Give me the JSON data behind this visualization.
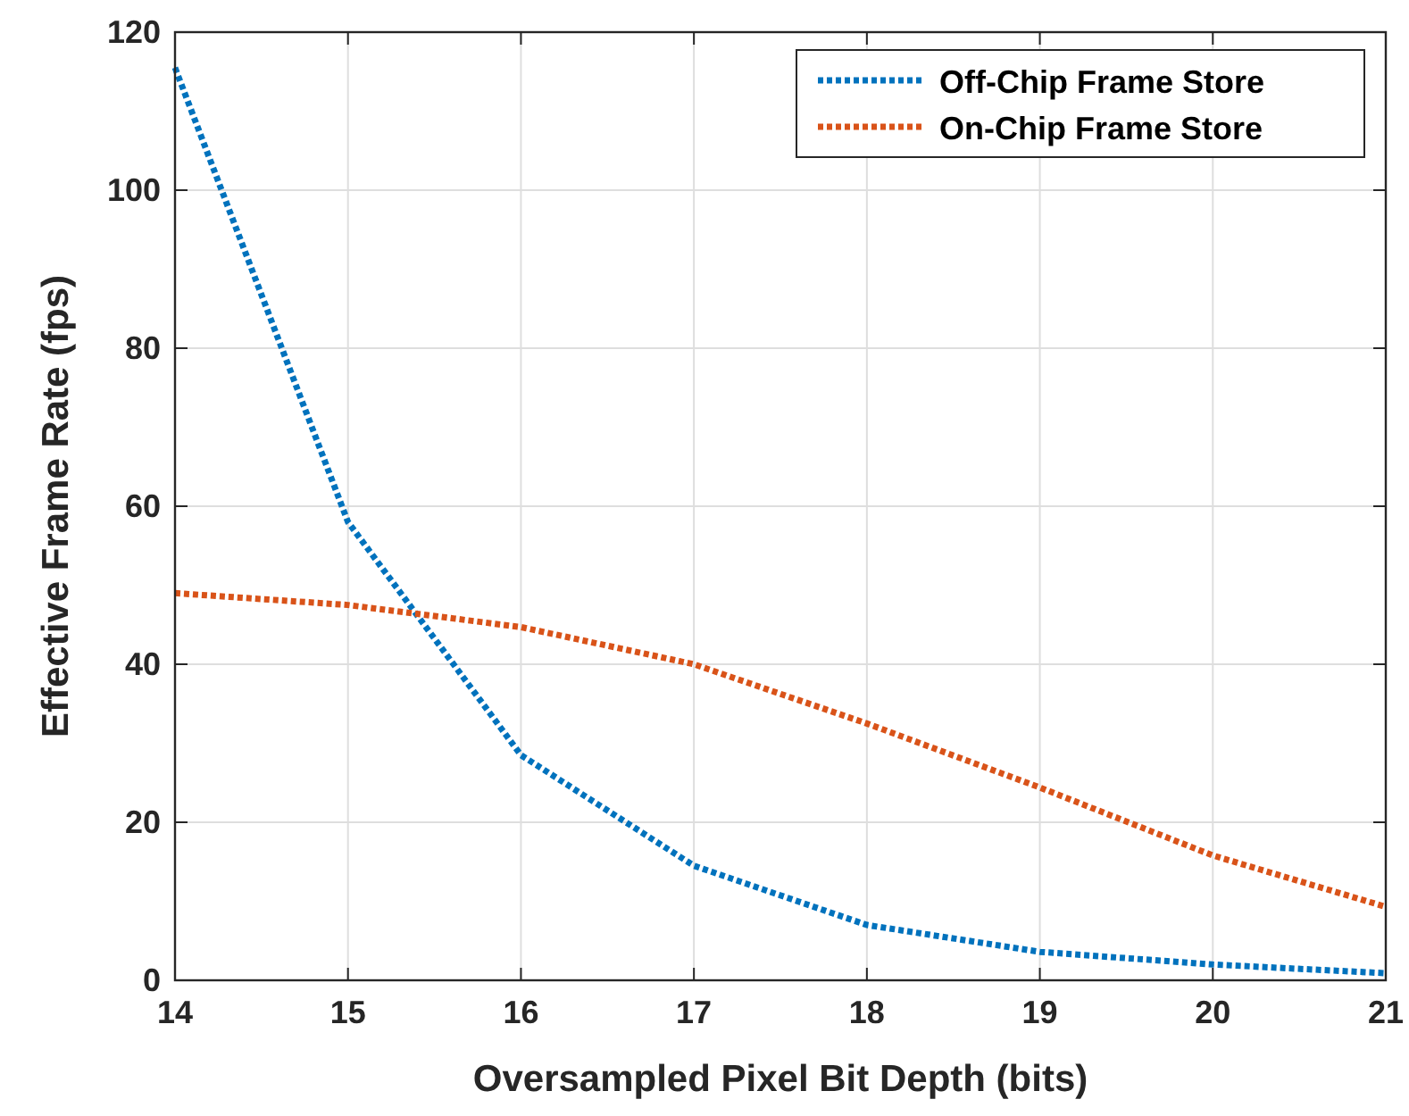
{
  "chart_data": {
    "type": "line",
    "xlabel": "Oversampled Pixel Bit Depth (bits)",
    "ylabel": "Effective Frame Rate (fps)",
    "x": [
      14,
      15,
      16,
      17,
      18,
      19,
      20,
      21
    ],
    "series": [
      {
        "name": "Off-Chip Frame Store",
        "color": "#0072bd",
        "values": [
          115.5,
          58,
          28.5,
          14.5,
          7,
          3.6,
          2,
          0.9
        ]
      },
      {
        "name": "On-Chip Frame Store",
        "color": "#d95319",
        "values": [
          49,
          47.5,
          44.7,
          40,
          32.5,
          24.4,
          15.8,
          9.3
        ]
      }
    ],
    "xlim": [
      14,
      21
    ],
    "xticks": [
      14,
      15,
      16,
      17,
      18,
      19,
      20,
      21
    ],
    "ylim": [
      0,
      120
    ],
    "yticks": [
      0,
      20,
      40,
      60,
      80,
      100,
      120
    ],
    "grid": true,
    "legend": "top right",
    "marker": "none",
    "line_style": "dotted"
  }
}
